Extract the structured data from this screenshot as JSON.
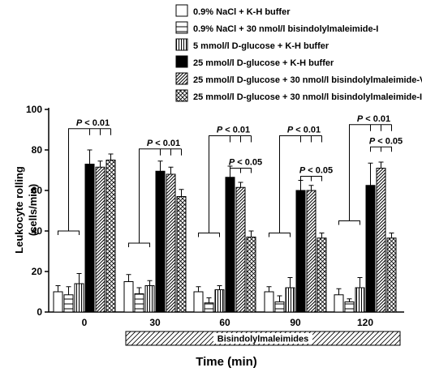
{
  "chart_data": {
    "type": "bar",
    "categories": [
      "0",
      "30",
      "60",
      "90",
      "120"
    ],
    "xlabel": "Time (min)",
    "ylabel_line1": "Leukocyte rolling",
    "ylabel_line2": "(cells/min)",
    "ylim": [
      0,
      100
    ],
    "yticks": [
      "0",
      "20",
      "40",
      "60",
      "80",
      "100"
    ],
    "legend_position": "top-right",
    "series": [
      {
        "name": "0.9% NaCl + K-H buffer",
        "pattern": "white",
        "values": [
          10,
          15,
          10,
          10,
          8.5
        ],
        "errors": [
          3,
          3.5,
          2.5,
          2.5,
          3
        ]
      },
      {
        "name": "0.9% NaCl + 30 nmol/l bisindolylmaleimide-I",
        "pattern": "hline",
        "values": [
          8.5,
          9,
          4.5,
          5,
          5
        ],
        "errors": [
          4,
          3,
          2.5,
          3,
          1.5
        ]
      },
      {
        "name": "5 mmol/l D-glucose + K-H buffer",
        "pattern": "vline",
        "values": [
          14,
          13,
          11,
          12,
          12
        ],
        "errors": [
          5,
          2.5,
          2,
          5,
          5
        ]
      },
      {
        "name": "25 mmol/l D-glucose + K-H buffer",
        "pattern": "black",
        "values": [
          73,
          69.5,
          66.5,
          60,
          62.5
        ],
        "errors": [
          7,
          5,
          5.5,
          5,
          11
        ]
      },
      {
        "name": "25 mmol/l D-glucose + 30 nmol/l bisindolylmaleimide-V",
        "pattern": "diag",
        "values": [
          71.5,
          68,
          61.5,
          60,
          71
        ],
        "errors": [
          3,
          3.5,
          2.5,
          2.5,
          3
        ]
      },
      {
        "name": "25 mmol/l D-glucose + 30 nmol/l bisindolylmaleimide-I",
        "pattern": "cross",
        "values": [
          75,
          57,
          37,
          36.5,
          36.5
        ],
        "errors": [
          3,
          3.5,
          3,
          2.5,
          2.5
        ]
      }
    ],
    "annotations": {
      "p001": "P < 0.01",
      "p005": "P < 0.05",
      "treatment_band": "Bisindolylmaleimides"
    }
  }
}
